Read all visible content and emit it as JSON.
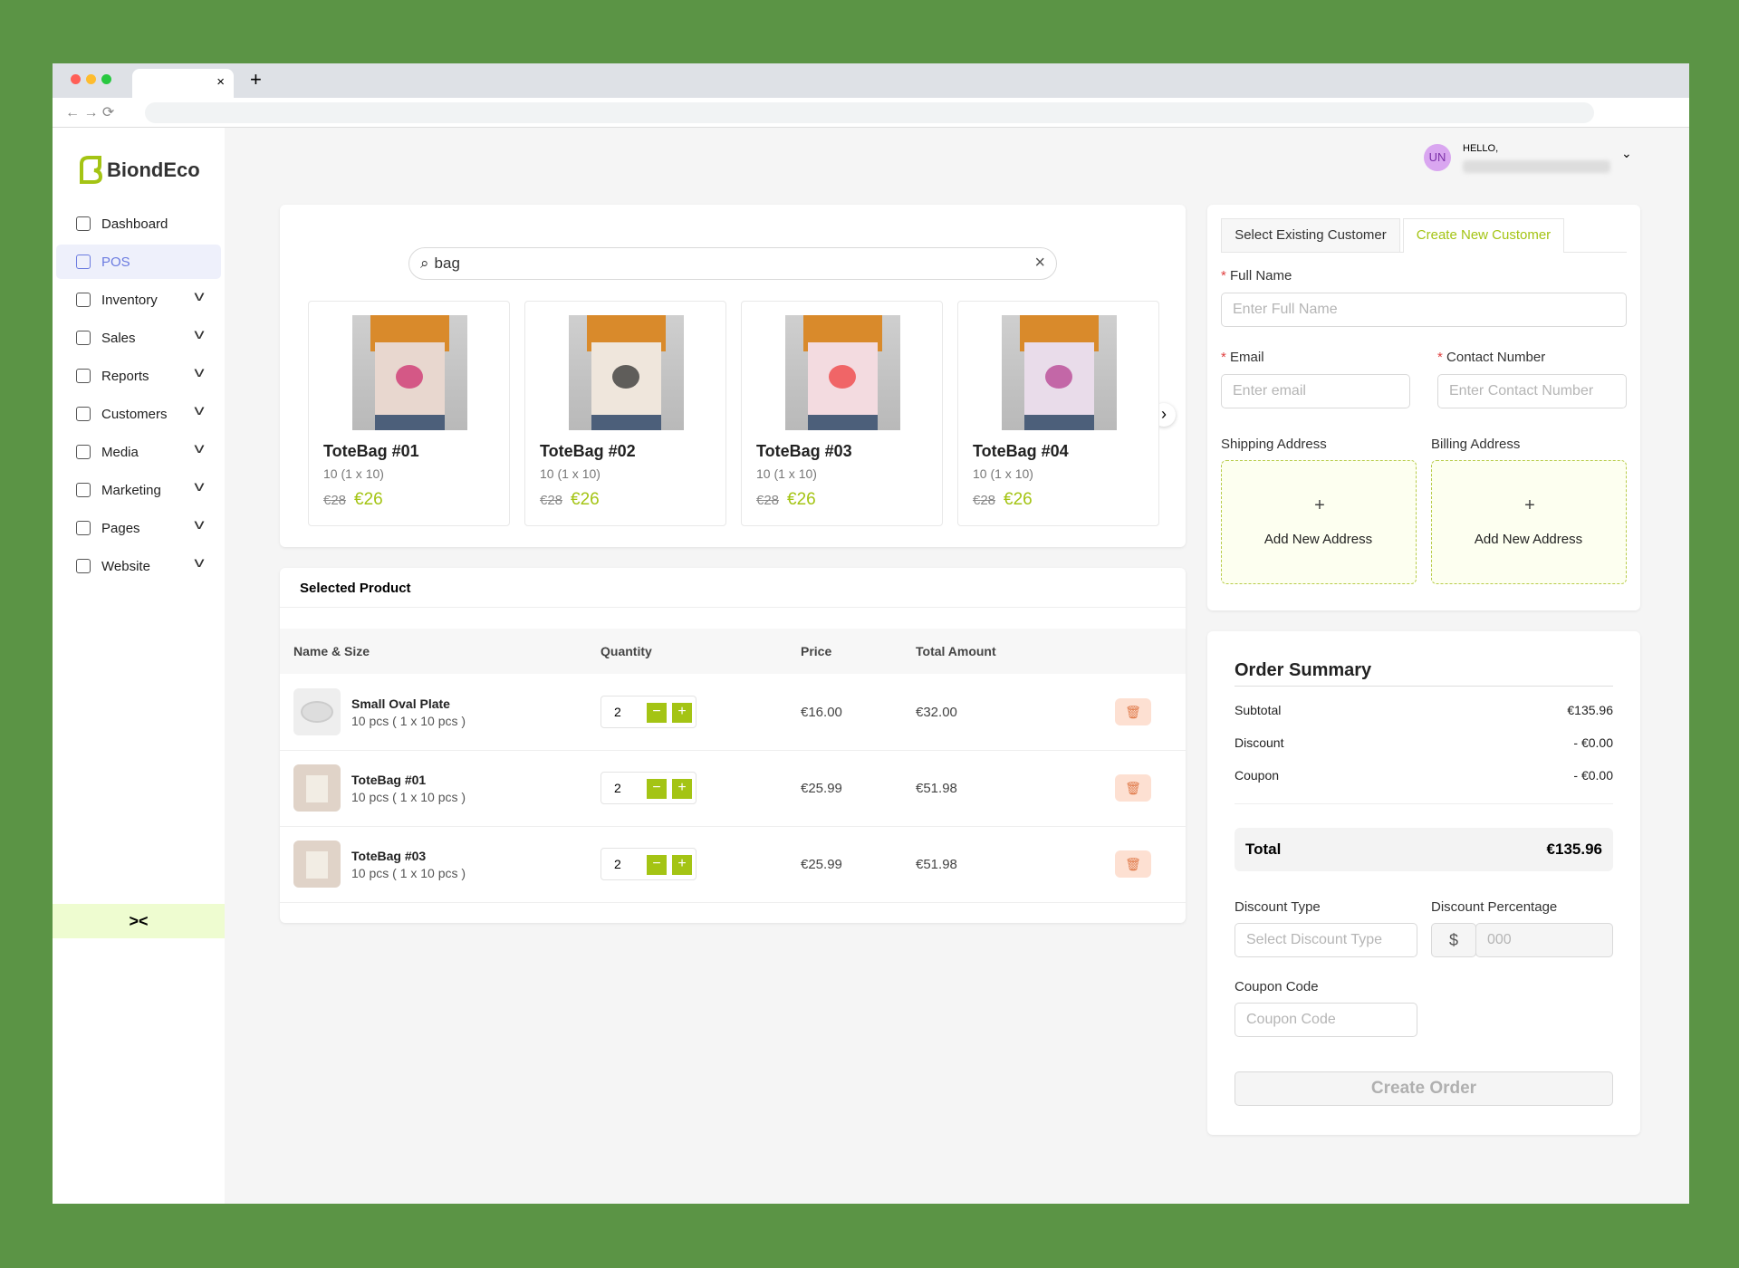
{
  "brand": "BiondEco",
  "user": {
    "initials": "UN",
    "greeting": "HELLO,"
  },
  "nav": [
    "Dashboard",
    "POS",
    "Inventory",
    "Sales",
    "Reports",
    "Customers",
    "Media",
    "Marketing",
    "Pages",
    "Website"
  ],
  "search": {
    "query": "bag"
  },
  "products": [
    {
      "name": "ToteBag #01",
      "size": "10 (1 x 10)",
      "old_price": "€28",
      "price": "€26"
    },
    {
      "name": "ToteBag #02",
      "size": "10 (1 x 10)",
      "old_price": "€28",
      "price": "€26"
    },
    {
      "name": "ToteBag #03",
      "size": "10 (1 x 10)",
      "old_price": "€28",
      "price": "€26"
    },
    {
      "name": "ToteBag #04",
      "size": "10 (1 x 10)",
      "old_price": "€28",
      "price": "€26"
    }
  ],
  "selected": {
    "title": "Selected Product",
    "columns": [
      "Name & Size",
      "Quantity",
      "Price",
      "Total Amount"
    ],
    "rows": [
      {
        "name": "Small Oval Plate",
        "size": "10 pcs ( 1 x 10 pcs )",
        "quantity": 2,
        "price": "€16.00",
        "total": "€32.00"
      },
      {
        "name": "ToteBag #01",
        "size": "10 pcs ( 1 x 10 pcs )",
        "quantity": 2,
        "price": "€25.99",
        "total": "€51.98"
      },
      {
        "name": "ToteBag #03",
        "size": "10 pcs ( 1 x 10 pcs )",
        "quantity": 2,
        "price": "€25.99",
        "total": "€51.98"
      }
    ]
  },
  "customer": {
    "tabs": [
      "Select Existing Customer",
      "Create New Customer"
    ],
    "full_name": {
      "label": "Full Name",
      "placeholder": "Enter Full Name"
    },
    "email": {
      "label": "Email",
      "placeholder": "Enter email"
    },
    "contact": {
      "label": "Contact Number",
      "placeholder": "Enter Contact Number"
    },
    "shipping": "Shipping Address",
    "billing": "Billing Address",
    "add_address": "Add New Address"
  },
  "summary": {
    "title": "Order Summary",
    "rows": [
      {
        "label": "Subtotal",
        "value": "€135.96"
      },
      {
        "label": "Discount",
        "value": "- €0.00"
      },
      {
        "label": "Coupon",
        "value": "- €0.00"
      }
    ],
    "total": {
      "label": "Total",
      "value": "€135.96"
    },
    "discount_type": {
      "label": "Discount Type",
      "placeholder": "Select Discount Type"
    },
    "discount_percentage": {
      "label": "Discount Percentage",
      "currency": "$",
      "placeholder": "000"
    },
    "coupon": {
      "label": "Coupon Code",
      "placeholder": "Coupon Code"
    },
    "button": "Create Order"
  }
}
